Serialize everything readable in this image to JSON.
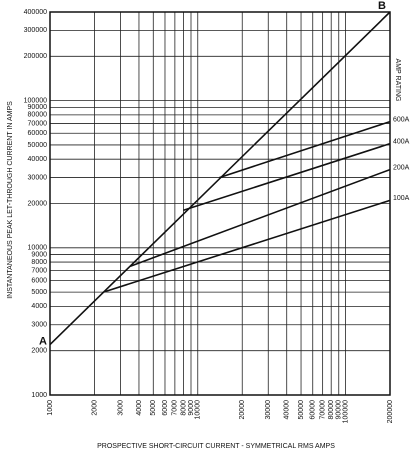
{
  "chart_data": {
    "type": "line",
    "y_label": "INSTANTANEOUS PEAK LET-THROUGH CURRENT IN AMPS",
    "x_label": "PROSPECTIVE SHORT-CIRCUIT CURRENT - SYMMETRICAL RMS AMPS",
    "legend_title": "AMP RATING",
    "xscale": "log",
    "yscale": "log",
    "grid": true,
    "xlim": [
      1000,
      200000
    ],
    "ylim": [
      1000,
      400000
    ],
    "xticks": [
      1000,
      2000,
      3000,
      4000,
      5000,
      6000,
      7000,
      8000,
      9000,
      10000,
      20000,
      30000,
      40000,
      50000,
      60000,
      70000,
      80000,
      90000,
      100000,
      200000
    ],
    "yticks": [
      1000,
      2000,
      3000,
      4000,
      5000,
      6000,
      7000,
      8000,
      9000,
      10000,
      20000,
      30000,
      40000,
      50000,
      60000,
      70000,
      80000,
      90000,
      100000,
      200000,
      300000,
      400000
    ],
    "series": [
      {
        "color": "#111111",
        "x": [
          1000,
          200000
        ],
        "values": [
          2200,
          400000
        ],
        "point_labels": [
          "A",
          "B"
        ]
      },
      {
        "name": "600A",
        "color": "#111111",
        "x": [
          14000,
          200000
        ],
        "values": [
          30000,
          72000
        ]
      },
      {
        "name": "400A",
        "color": "#111111",
        "x": [
          8000,
          200000
        ],
        "values": [
          18000,
          51000
        ]
      },
      {
        "name": "200A",
        "color": "#111111",
        "x": [
          3500,
          200000
        ],
        "values": [
          7500,
          34000
        ]
      },
      {
        "name": "100A",
        "color": "#111111",
        "x": [
          2300,
          200000
        ],
        "values": [
          5000,
          21000
        ]
      }
    ]
  }
}
